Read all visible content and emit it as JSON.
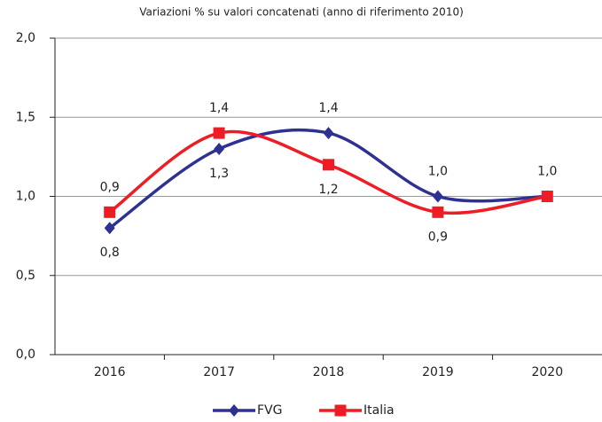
{
  "chart_data": {
    "type": "line",
    "subtitle": "Variazioni % su valori concatenati (anno di riferimento 2010)",
    "categories": [
      "2016",
      "2017",
      "2018",
      "2019",
      "2020"
    ],
    "series": [
      {
        "name": "FVG",
        "color": "#2e3192",
        "marker": "diamond",
        "values": [
          0.8,
          1.3,
          1.4,
          1.0,
          1.0
        ],
        "value_labels": [
          "0,8",
          "1,3",
          "1,4",
          "1,0",
          "1,0"
        ]
      },
      {
        "name": "Italia",
        "color": "#ee1c25",
        "marker": "square",
        "values": [
          0.9,
          1.4,
          1.2,
          0.9,
          1.0
        ],
        "value_labels": [
          "0,9",
          "1,4",
          "1,2",
          "0,9",
          null
        ]
      }
    ],
    "ylim": [
      0,
      2
    ],
    "yticks": [
      {
        "value": 0,
        "label": "0,0"
      },
      {
        "value": 0.5,
        "label": "0,5"
      },
      {
        "value": 1,
        "label": "1,0"
      },
      {
        "value": 1.5,
        "label": "1,5"
      },
      {
        "value": 2,
        "label": "2,0"
      }
    ],
    "grid": true,
    "smooth": true,
    "legend": "bottom"
  }
}
